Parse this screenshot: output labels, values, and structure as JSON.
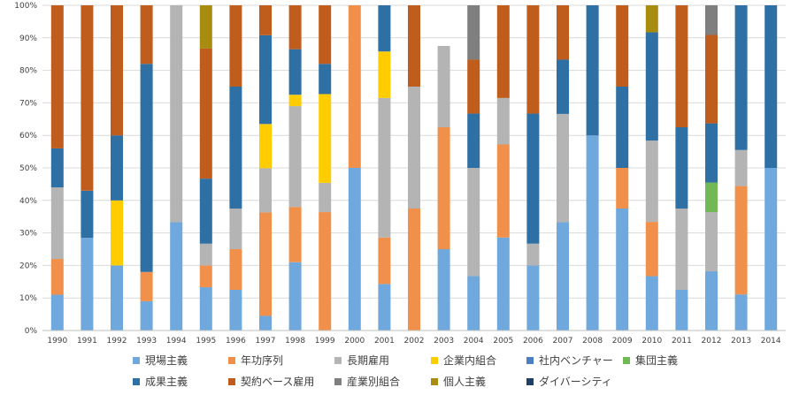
{
  "colors": {
    "genba": "#6fa8dc",
    "nenko": "#f0904a",
    "choki": "#b4b4b4",
    "kigyonai": "#ffcc00",
    "shanai": "#4a7fc1",
    "shudan": "#72b856",
    "seika": "#2e6fa4",
    "keiyaku": "#c05c1c",
    "sangyo": "#7f7f7f",
    "kojin": "#a88c10",
    "diversity": "#1f3f66"
  },
  "chart_data": {
    "type": "bar",
    "stacked": true,
    "categories": [
      "1990",
      "1991",
      "1992",
      "1993",
      "1994",
      "1995",
      "1996",
      "1997",
      "1998",
      "1999",
      "2000",
      "2001",
      "2002",
      "2003",
      "2004",
      "2005",
      "2006",
      "2007",
      "2008",
      "2009",
      "2010",
      "2011",
      "2012",
      "2013",
      "2014"
    ],
    "ylim": [
      0,
      100
    ],
    "yticks": [
      "0%",
      "10%",
      "20%",
      "30%",
      "40%",
      "50%",
      "60%",
      "70%",
      "80%",
      "90%",
      "100%"
    ],
    "grid": true,
    "legend_position": "bottom",
    "series": [
      {
        "name": "現場主義",
        "color_key": "genba",
        "values": [
          11,
          28.5,
          20,
          9,
          33.3,
          13.3,
          12.5,
          4.5,
          21,
          0,
          50,
          14.3,
          0,
          25,
          16.7,
          28.6,
          20,
          33.3,
          60,
          37.5,
          16.7,
          12.5,
          18.2,
          11.1,
          50
        ]
      },
      {
        "name": "年功序列",
        "color_key": "nenko",
        "values": [
          11,
          0,
          0,
          9,
          0,
          6.7,
          12.5,
          31.8,
          17,
          36.4,
          50,
          14.3,
          37.5,
          37.5,
          0,
          28.6,
          0,
          0,
          0,
          12.5,
          16.7,
          0,
          0,
          33.3,
          0
        ]
      },
      {
        "name": "長期雇用",
        "color_key": "choki",
        "values": [
          22,
          0,
          0,
          0,
          66.7,
          6.7,
          12.5,
          13.6,
          31,
          9,
          0,
          42.9,
          37.5,
          25,
          33.3,
          14.3,
          6.7,
          33.3,
          0,
          0,
          25,
          25,
          18.2,
          11.1,
          0
        ]
      },
      {
        "name": "企業内組合",
        "color_key": "kigyonai",
        "values": [
          0,
          0,
          20,
          0,
          0,
          0,
          0,
          13.6,
          3.5,
          27.3,
          0,
          14.3,
          0,
          0,
          0,
          0,
          0,
          0,
          0,
          0,
          0,
          0,
          0,
          0,
          0
        ]
      },
      {
        "name": "社内ベンチャー",
        "color_key": "shanai",
        "values": [
          0,
          0,
          0,
          0,
          0,
          0,
          0,
          0,
          0,
          0,
          0,
          0,
          0,
          0,
          0,
          0,
          0,
          0,
          0,
          0,
          0,
          0,
          0,
          0,
          0
        ]
      },
      {
        "name": "集団主義",
        "color_key": "shudan",
        "values": [
          0,
          0,
          0,
          0,
          0,
          0,
          0,
          0,
          0,
          0,
          0,
          0,
          0,
          0,
          0,
          0,
          0,
          0,
          0,
          0,
          0,
          0,
          9.1,
          0,
          0
        ]
      },
      {
        "name": "成果主義",
        "color_key": "seika",
        "values": [
          12,
          14.5,
          20,
          64,
          0,
          20,
          37.5,
          27.3,
          14,
          9.3,
          0,
          0,
          0,
          0,
          16.7,
          0,
          40,
          16.7,
          40,
          25,
          33.3,
          25,
          18.2,
          44.5,
          50
        ]
      },
      {
        "name": "契約ベース雇用",
        "color_key": "keiyaku",
        "values": [
          44,
          57,
          40,
          18,
          0,
          40,
          25,
          9.2,
          13.5,
          18,
          0,
          0,
          25,
          0,
          16.6,
          28.5,
          33.3,
          16.7,
          0,
          25,
          0,
          37.5,
          27.2,
          0,
          0
        ]
      },
      {
        "name": "産業別組合",
        "color_key": "sangyo",
        "values": [
          0,
          0,
          0,
          0,
          0,
          0,
          0,
          0,
          0,
          0,
          0,
          0,
          0,
          0,
          16.7,
          0,
          0,
          0,
          0,
          0,
          0,
          0,
          9.1,
          0,
          0
        ]
      },
      {
        "name": "個人主義",
        "color_key": "kojin",
        "values": [
          0,
          0,
          0,
          0,
          0,
          13.3,
          0,
          0,
          0,
          0,
          0,
          0,
          0,
          0,
          0,
          0,
          0,
          0,
          0,
          0,
          8.3,
          0,
          0,
          0,
          0
        ]
      },
      {
        "name": "ダイバーシティ",
        "color_key": "diversity",
        "values": [
          0,
          0,
          0,
          0,
          0,
          0,
          0,
          0,
          0,
          0,
          0,
          0,
          0,
          0,
          0,
          0,
          0,
          0,
          0,
          0,
          0,
          0,
          0,
          0,
          0
        ]
      }
    ],
    "series_fix_2001": {
      "seika": 14.2
    }
  }
}
